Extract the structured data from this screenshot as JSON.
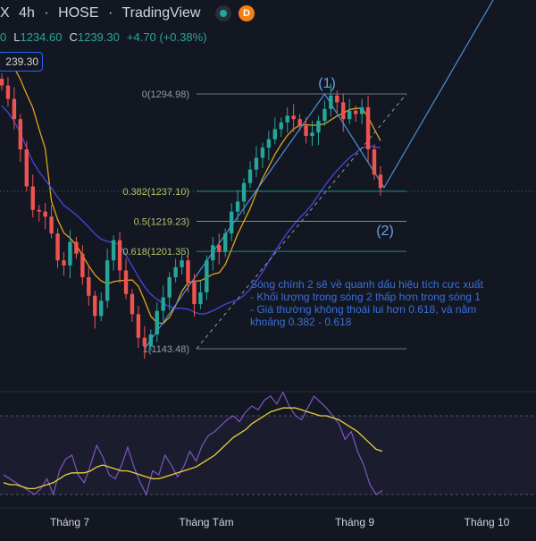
{
  "header": {
    "symbol_tail": "X",
    "interval": "4h",
    "exchange": "HOSE",
    "platform": "TradingView",
    "badge_letter": "D"
  },
  "ohlc": {
    "last_label_tail": "0",
    "low_label": "L",
    "low_value": "1234.60",
    "close_label": "C",
    "close_value": "1239.30",
    "change": "+4.70 (+0.38%)"
  },
  "price_tag": "239.30",
  "colors": {
    "background": "#131722",
    "up": "#26a69a",
    "down": "#ef5350",
    "ma_yellow": "#e0a41a",
    "ma_blue": "#4a44e0",
    "trend_line": "#4a90d9",
    "annotation_blue": "#3a6fd8",
    "rsi_line": "#7e57c2",
    "rsi_ma": "#e8d23a",
    "fib_line": "#6f8a7a"
  },
  "chart_data": [
    {
      "type": "candlestick",
      "x_tick_labels": [
        "Tháng 7",
        "Tháng Tám",
        "Tháng 9",
        "Tháng 10"
      ],
      "fibonacci": [
        {
          "ratio_label": "0(1294.98)",
          "ratio": 0,
          "price": 1294.98
        },
        {
          "ratio_label": "0.382(1237.10)",
          "ratio": 0.382,
          "price": 1237.1
        },
        {
          "ratio_label": "0.5(1219.23)",
          "ratio": 0.5,
          "price": 1219.23
        },
        {
          "ratio_label": "0.618(1201.35)",
          "ratio": 0.618,
          "price": 1201.35
        },
        {
          "ratio_label": "1(1143.48)",
          "ratio": 1,
          "price": 1143.48
        }
      ],
      "wave_labels": [
        "(1)",
        "(2)"
      ],
      "annotation_lines": [
        "Sóng chính 2 sẽ về quanh dấu hiệu tích cực xuất",
        "  - Khối lượng trong sóng 2 thấp hơn trong sóng 1",
        "  - Giá thường không thoái lui hơn 0.618, và nằm",
        "khoảng 0.382 - 0.618"
      ],
      "close_series": [
        1300,
        1292,
        1280,
        1262,
        1240,
        1226,
        1225,
        1222,
        1212,
        1196,
        1193,
        1207,
        1200,
        1186,
        1175,
        1163,
        1172,
        1196,
        1208,
        1190,
        1176,
        1164,
        1150,
        1145,
        1152,
        1166,
        1174,
        1186,
        1192,
        1196,
        1183,
        1170,
        1177,
        1196,
        1205,
        1201,
        1212,
        1225,
        1231,
        1242,
        1250,
        1257,
        1263,
        1268,
        1274,
        1278,
        1282,
        1280,
        1276,
        1270,
        1272,
        1279,
        1286,
        1294,
        1290,
        1280,
        1285,
        1283,
        1287,
        1262,
        1247,
        1239
      ]
    },
    {
      "type": "line",
      "name": "RSI",
      "rsi_series": [
        40,
        38,
        36,
        34,
        32,
        30,
        33,
        38,
        30,
        42,
        48,
        50,
        40,
        36,
        45,
        55,
        49,
        40,
        38,
        45,
        54,
        44,
        36,
        30,
        42,
        40,
        50,
        45,
        39,
        44,
        52,
        47,
        55,
        60,
        62,
        65,
        68,
        70,
        67,
        72,
        75,
        73,
        78,
        80,
        76,
        82,
        75,
        70,
        68,
        74,
        80,
        77,
        74,
        70,
        66,
        58,
        62,
        52,
        45,
        35,
        30,
        32
      ],
      "rsi_ma_series": [
        36,
        35,
        35,
        34,
        33,
        33,
        34,
        35,
        36,
        38,
        40,
        41,
        41,
        41,
        42,
        44,
        45,
        44,
        43,
        42,
        42,
        41,
        40,
        39,
        38,
        38,
        39,
        40,
        41,
        42,
        43,
        44,
        46,
        48,
        50,
        53,
        56,
        59,
        61,
        63,
        66,
        68,
        70,
        72,
        73,
        74,
        74,
        74,
        73,
        72,
        71,
        70,
        70,
        69,
        68,
        66,
        64,
        62,
        59,
        56,
        53,
        52
      ]
    }
  ]
}
